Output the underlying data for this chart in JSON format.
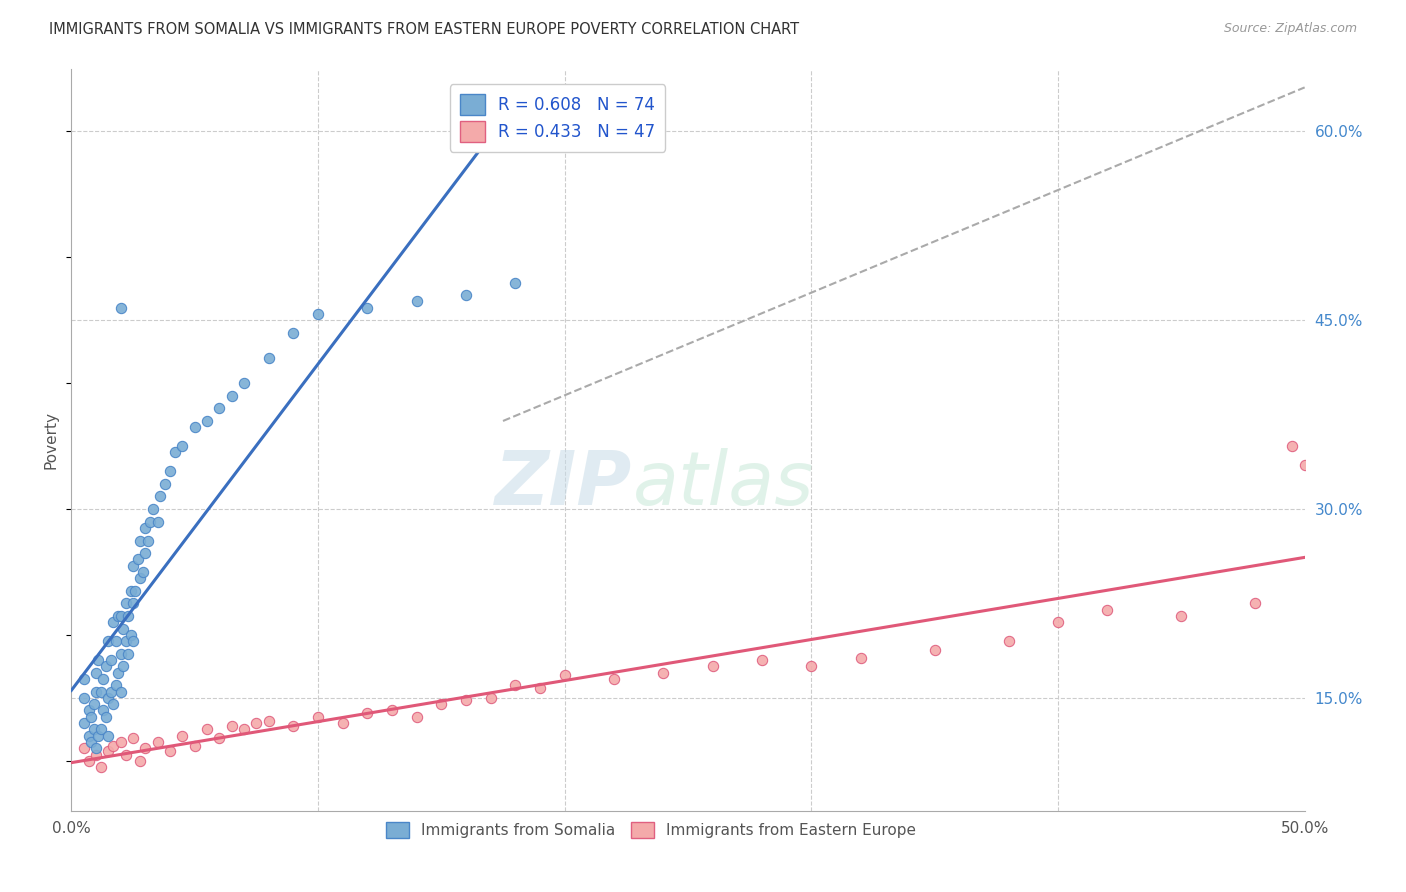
{
  "title": "IMMIGRANTS FROM SOMALIA VS IMMIGRANTS FROM EASTERN EUROPE POVERTY CORRELATION CHART",
  "source": "Source: ZipAtlas.com",
  "ylabel": "Poverty",
  "xlim": [
    0.0,
    0.5
  ],
  "ylim": [
    0.06,
    0.65
  ],
  "somalia_color": "#7AADD4",
  "somalia_edge_color": "#4A86C8",
  "eastern_europe_color": "#F4AAAA",
  "eastern_europe_edge_color": "#E06080",
  "somalia_line_color": "#3A6FBF",
  "eastern_europe_line_color": "#E05878",
  "R_somalia": 0.608,
  "N_somalia": 74,
  "R_eastern": 0.433,
  "N_eastern": 47,
  "legend_label_somalia": "Immigrants from Somalia",
  "legend_label_eastern": "Immigrants from Eastern Europe",
  "watermark_zip": "ZIP",
  "watermark_atlas": "atlas",
  "somalia_x": [
    0.005,
    0.005,
    0.005,
    0.007,
    0.007,
    0.008,
    0.008,
    0.009,
    0.009,
    0.01,
    0.01,
    0.01,
    0.011,
    0.011,
    0.012,
    0.012,
    0.013,
    0.013,
    0.014,
    0.014,
    0.015,
    0.015,
    0.015,
    0.016,
    0.016,
    0.017,
    0.017,
    0.018,
    0.018,
    0.019,
    0.019,
    0.02,
    0.02,
    0.02,
    0.021,
    0.021,
    0.022,
    0.022,
    0.023,
    0.023,
    0.024,
    0.024,
    0.025,
    0.025,
    0.025,
    0.026,
    0.027,
    0.028,
    0.028,
    0.029,
    0.03,
    0.03,
    0.031,
    0.032,
    0.033,
    0.035,
    0.036,
    0.038,
    0.04,
    0.042,
    0.045,
    0.05,
    0.055,
    0.06,
    0.065,
    0.07,
    0.08,
    0.09,
    0.1,
    0.12,
    0.14,
    0.16,
    0.18,
    0.02
  ],
  "somalia_y": [
    0.13,
    0.15,
    0.165,
    0.12,
    0.14,
    0.115,
    0.135,
    0.125,
    0.145,
    0.11,
    0.155,
    0.17,
    0.12,
    0.18,
    0.125,
    0.155,
    0.14,
    0.165,
    0.135,
    0.175,
    0.12,
    0.15,
    0.195,
    0.155,
    0.18,
    0.145,
    0.21,
    0.16,
    0.195,
    0.17,
    0.215,
    0.155,
    0.185,
    0.215,
    0.175,
    0.205,
    0.195,
    0.225,
    0.185,
    0.215,
    0.2,
    0.235,
    0.195,
    0.225,
    0.255,
    0.235,
    0.26,
    0.245,
    0.275,
    0.25,
    0.265,
    0.285,
    0.275,
    0.29,
    0.3,
    0.29,
    0.31,
    0.32,
    0.33,
    0.345,
    0.35,
    0.365,
    0.37,
    0.38,
    0.39,
    0.4,
    0.42,
    0.44,
    0.455,
    0.46,
    0.465,
    0.47,
    0.48,
    0.46
  ],
  "eastern_x": [
    0.005,
    0.007,
    0.01,
    0.012,
    0.015,
    0.017,
    0.02,
    0.022,
    0.025,
    0.028,
    0.03,
    0.035,
    0.04,
    0.045,
    0.05,
    0.055,
    0.06,
    0.065,
    0.07,
    0.075,
    0.08,
    0.09,
    0.1,
    0.11,
    0.12,
    0.13,
    0.14,
    0.15,
    0.16,
    0.17,
    0.18,
    0.19,
    0.2,
    0.22,
    0.24,
    0.26,
    0.28,
    0.3,
    0.32,
    0.35,
    0.38,
    0.4,
    0.42,
    0.45,
    0.48,
    0.495,
    0.5
  ],
  "eastern_y": [
    0.11,
    0.1,
    0.105,
    0.095,
    0.108,
    0.112,
    0.115,
    0.105,
    0.118,
    0.1,
    0.11,
    0.115,
    0.108,
    0.12,
    0.112,
    0.125,
    0.118,
    0.128,
    0.125,
    0.13,
    0.132,
    0.128,
    0.135,
    0.13,
    0.138,
    0.14,
    0.135,
    0.145,
    0.148,
    0.15,
    0.16,
    0.158,
    0.168,
    0.165,
    0.17,
    0.175,
    0.18,
    0.175,
    0.182,
    0.188,
    0.195,
    0.21,
    0.22,
    0.215,
    0.225,
    0.35,
    0.335
  ],
  "trend_x": [
    0.175,
    0.5
  ],
  "trend_y": [
    0.37,
    0.635
  ]
}
